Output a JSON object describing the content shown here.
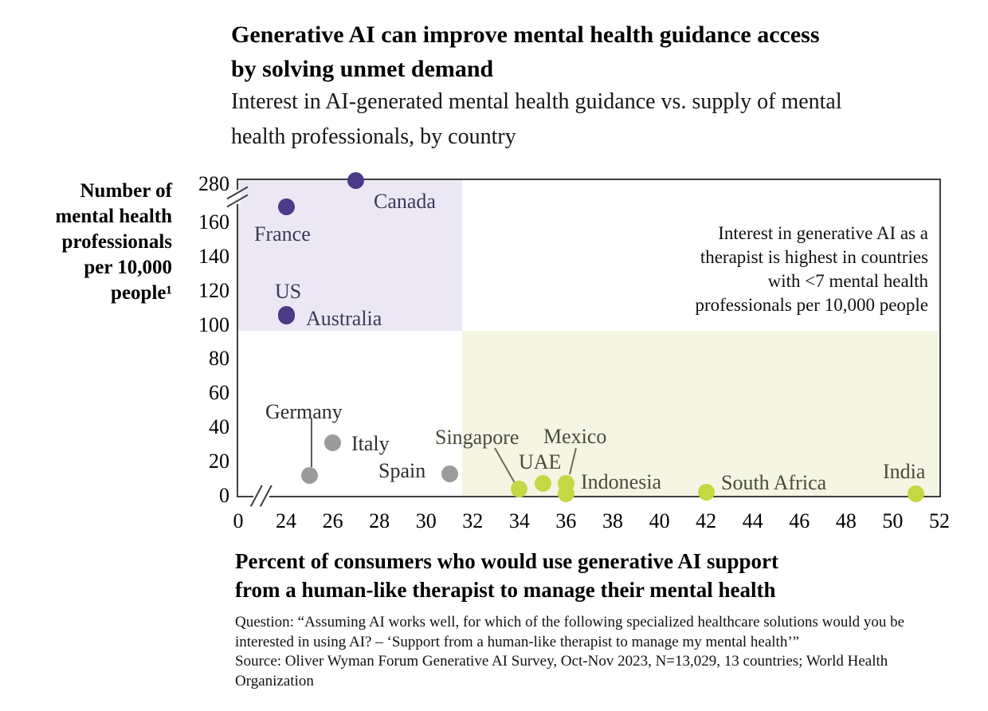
{
  "header": {
    "title_lines": [
      "Generative AI can improve mental health guidance access",
      "by solving unmet demand"
    ],
    "subtitle_lines": [
      "Interest in AI-generated mental health guidance vs. supply of mental",
      "health professionals, by country"
    ]
  },
  "axes": {
    "y_title_lines": [
      "Number of",
      "mental health",
      "professionals",
      "per 10,000",
      "people¹"
    ],
    "x_title_lines": [
      "Percent of consumers who would use generative AI support",
      "from a human-like therapist to manage their mental health"
    ]
  },
  "footnote": {
    "lines": [
      "Question: “Assuming AI works well, for which of the following specialized healthcare solutions would you be",
      "interested in using AI? – ‘Support from a human-like therapist to manage my mental health’”",
      "Source: Oliver Wyman Forum Generative AI Survey, Oct-Nov 2023, N=13,029, 13 countries; World Health",
      "Organization"
    ]
  },
  "chart_data": {
    "type": "scatter",
    "title": "Generative AI can improve mental health guidance access by solving unmet demand",
    "subtitle": "Interest in AI-generated mental health guidance vs. supply of mental health professionals, by country",
    "xlabel": "Percent of consumers who would use generative AI support from a human-like therapist to manage their mental health",
    "ylabel": "Number of mental health professionals per 10,000 people¹",
    "x_axis": {
      "ticks": [
        0,
        24,
        26,
        28,
        30,
        32,
        34,
        36,
        38,
        40,
        42,
        44,
        46,
        48,
        50,
        52
      ],
      "break_after": 0
    },
    "y_axis": {
      "ticks": [
        0,
        20,
        40,
        60,
        80,
        100,
        120,
        140,
        160,
        280
      ],
      "break_after": 160
    },
    "annotation_lines": [
      "Interest in generative AI as a",
      "therapist is highest in countries",
      "with <7 mental health",
      "professionals per 10,000 people"
    ],
    "series": [
      {
        "name": "purple-high-supply",
        "dot_color": "#4a3a87",
        "label_color": "#3d3959",
        "points": [
          {
            "label": "Canada",
            "x": 27,
            "y": 290
          },
          {
            "label": "France",
            "x": 24,
            "y": 208
          },
          {
            "label": "US",
            "x": 24,
            "y": 106
          },
          {
            "label": "Australia",
            "x": 24,
            "y": 105
          }
        ]
      },
      {
        "name": "gray-mid-supply",
        "dot_color": "#9b9b9b",
        "label_color": "#2e2e2e",
        "points": [
          {
            "label": "Germany",
            "x": 25,
            "y": 12
          },
          {
            "label": "Italy",
            "x": 26,
            "y": 31
          },
          {
            "label": "Spain",
            "x": 31,
            "y": 13
          }
        ]
      },
      {
        "name": "green-low-supply",
        "dot_color": "#c5d742",
        "label_color": "#4a4a3a",
        "points": [
          {
            "label": "Singapore",
            "x": 34,
            "y": 4
          },
          {
            "label": "UAE",
            "x": 35,
            "y": 7
          },
          {
            "label": "Mexico",
            "x": 36,
            "y": 7
          },
          {
            "label": "Indonesia",
            "x": 36,
            "y": 1
          },
          {
            "label": "South Africa",
            "x": 42,
            "y": 2
          },
          {
            "label": "India",
            "x": 51,
            "y": 1
          }
        ]
      }
    ],
    "highlight_regions": [
      {
        "position": "top-left",
        "color": "#ebe7f5"
      },
      {
        "position": "bottom-right",
        "color": "#f4f5e3"
      }
    ]
  }
}
